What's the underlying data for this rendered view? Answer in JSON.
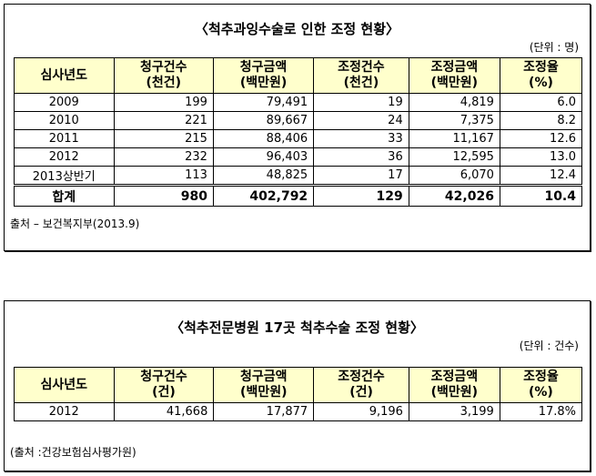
{
  "table1": {
    "title": "〈척추과잉수술로 인한 조정 현황〉",
    "unit": "(단위 : 명)",
    "header": [
      {
        "text": "심사년도"
      },
      {
        "text": "청구건수",
        "sub": "(천건)"
      },
      {
        "text": "청구금액",
        "sub": "(백만원)"
      },
      {
        "text": "조정건수",
        "sub": "(천건)"
      },
      {
        "text": "조정금액",
        "sub": "(백만원)"
      },
      {
        "text": "조정율",
        "sub": "(%)"
      }
    ],
    "rows": [
      [
        "2009",
        "199",
        "79,491",
        "19",
        "4,819",
        "6.0"
      ],
      [
        "2010",
        "221",
        "89,667",
        "24",
        "7,375",
        "8.2"
      ],
      [
        "2011",
        "215",
        "88,406",
        "33",
        "11,167",
        "12.6"
      ],
      [
        "2012",
        "232",
        "96,403",
        "36",
        "12,595",
        "13.0"
      ],
      [
        "2013상반기",
        "113",
        "48,825",
        "17",
        "6,070",
        "12.4"
      ]
    ],
    "total": [
      "합계",
      "980",
      "402,792",
      "129",
      "42,026",
      "10.4"
    ],
    "source": "출처 – 보건복지부(2013.9)"
  },
  "table2": {
    "title": "〈척추전문병원 17곳 척추수술 조정 현황〉",
    "unit": "(단위 : 건수)",
    "header": [
      {
        "text": "심사년도"
      },
      {
        "text": "청구건수",
        "sub": "(건)"
      },
      {
        "text": "청구금액",
        "sub": "(백만원)"
      },
      {
        "text": "조정건수",
        "sub": "(건)"
      },
      {
        "text": "조정금액",
        "sub": "(백만원)"
      },
      {
        "text": "조정율",
        "sub": "(%)"
      }
    ],
    "rows": [
      [
        "2012",
        "41,668",
        "17,877",
        "9,196",
        "3,199",
        "17.8%"
      ]
    ],
    "source": "(출처 :건강보험심사평가원)"
  }
}
